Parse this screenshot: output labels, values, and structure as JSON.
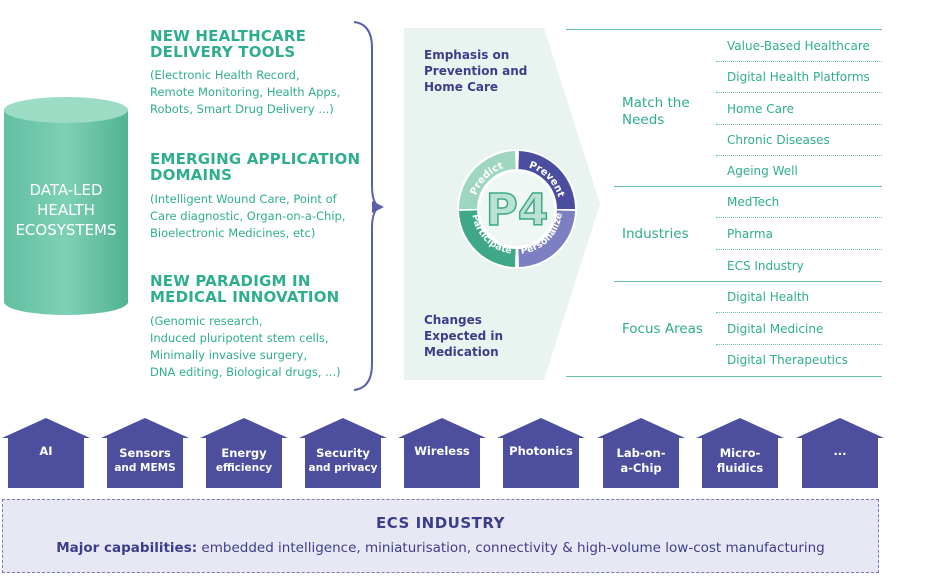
{
  "cylinder": {
    "lines": [
      "DATA-LED",
      "HEALTH",
      "ECOSYSTEMS"
    ]
  },
  "left_blocks": [
    {
      "title": [
        "NEW HEALTHCARE",
        "DELIVERY TOOLS"
      ],
      "desc": [
        "(Electronic Health Record,",
        "Remote Monitoring, Health Apps,",
        "Robots, Smart Drug Delivery ...)"
      ]
    },
    {
      "title": [
        "EMERGING APPLICATION",
        "DOMAINS"
      ],
      "desc": [
        "(Intelligent Wound Care, Point of",
        "Care diagnostic, Organ-on-a-Chip,",
        "Bioelectronic Medicines, etc)"
      ]
    },
    {
      "title": [
        "NEW PARADIGM IN",
        "MEDICAL INNOVATION"
      ],
      "desc": [
        "(Genomic research,",
        "Induced pluripotent stem cells,",
        "Minimally invasive surgery,",
        "DNA editing, Biological drugs, ...)"
      ]
    }
  ],
  "arrow_box": {
    "top_text": [
      "Emphasis on",
      "Prevention and",
      "Home Care"
    ],
    "bottom_text": [
      "Changes",
      "Expected in",
      "Medication"
    ]
  },
  "p4": {
    "logo": "P4",
    "segments": [
      "Predict",
      "Prevent",
      "Personalize",
      "Participate"
    ]
  },
  "categories": [
    {
      "label": [
        "Match the",
        "Needs"
      ],
      "items": [
        "Value-Based Healthcare",
        "Digital Health Platforms",
        "Home Care",
        "Chronic Diseases",
        "Ageing Well"
      ]
    },
    {
      "label": [
        "Industries"
      ],
      "items": [
        "MedTech",
        "Pharma",
        "ECS Industry"
      ]
    },
    {
      "label": [
        "Focus Areas"
      ],
      "items": [
        "Digital Health",
        "Digital Medicine",
        "Digital Therapeutics"
      ]
    }
  ],
  "capabilities": [
    [
      "AI"
    ],
    [
      "Sensors",
      "and MEMS"
    ],
    [
      "Energy",
      "efficiency"
    ],
    [
      "Security",
      "and privacy"
    ],
    [
      "Wireless"
    ],
    [
      "Photonics"
    ],
    [
      "Lab-on-",
      "a-Chip"
    ],
    [
      "Micro-",
      "fluidics"
    ],
    [
      "..."
    ]
  ],
  "ecs_industry": {
    "title": "ECS INDUSTRY",
    "cap_label": "Major capabilities:",
    "cap_text": " embedded intelligence, miniaturisation, connectivity & high-volume low-cost manufacturing"
  },
  "colors": {
    "green": "#2fae8f",
    "teal_dark": "#3f9e88",
    "purple": "#3d3d8c",
    "house_fill": "#4d4f9e",
    "arrow_box_fill": "#e9f3ef"
  }
}
